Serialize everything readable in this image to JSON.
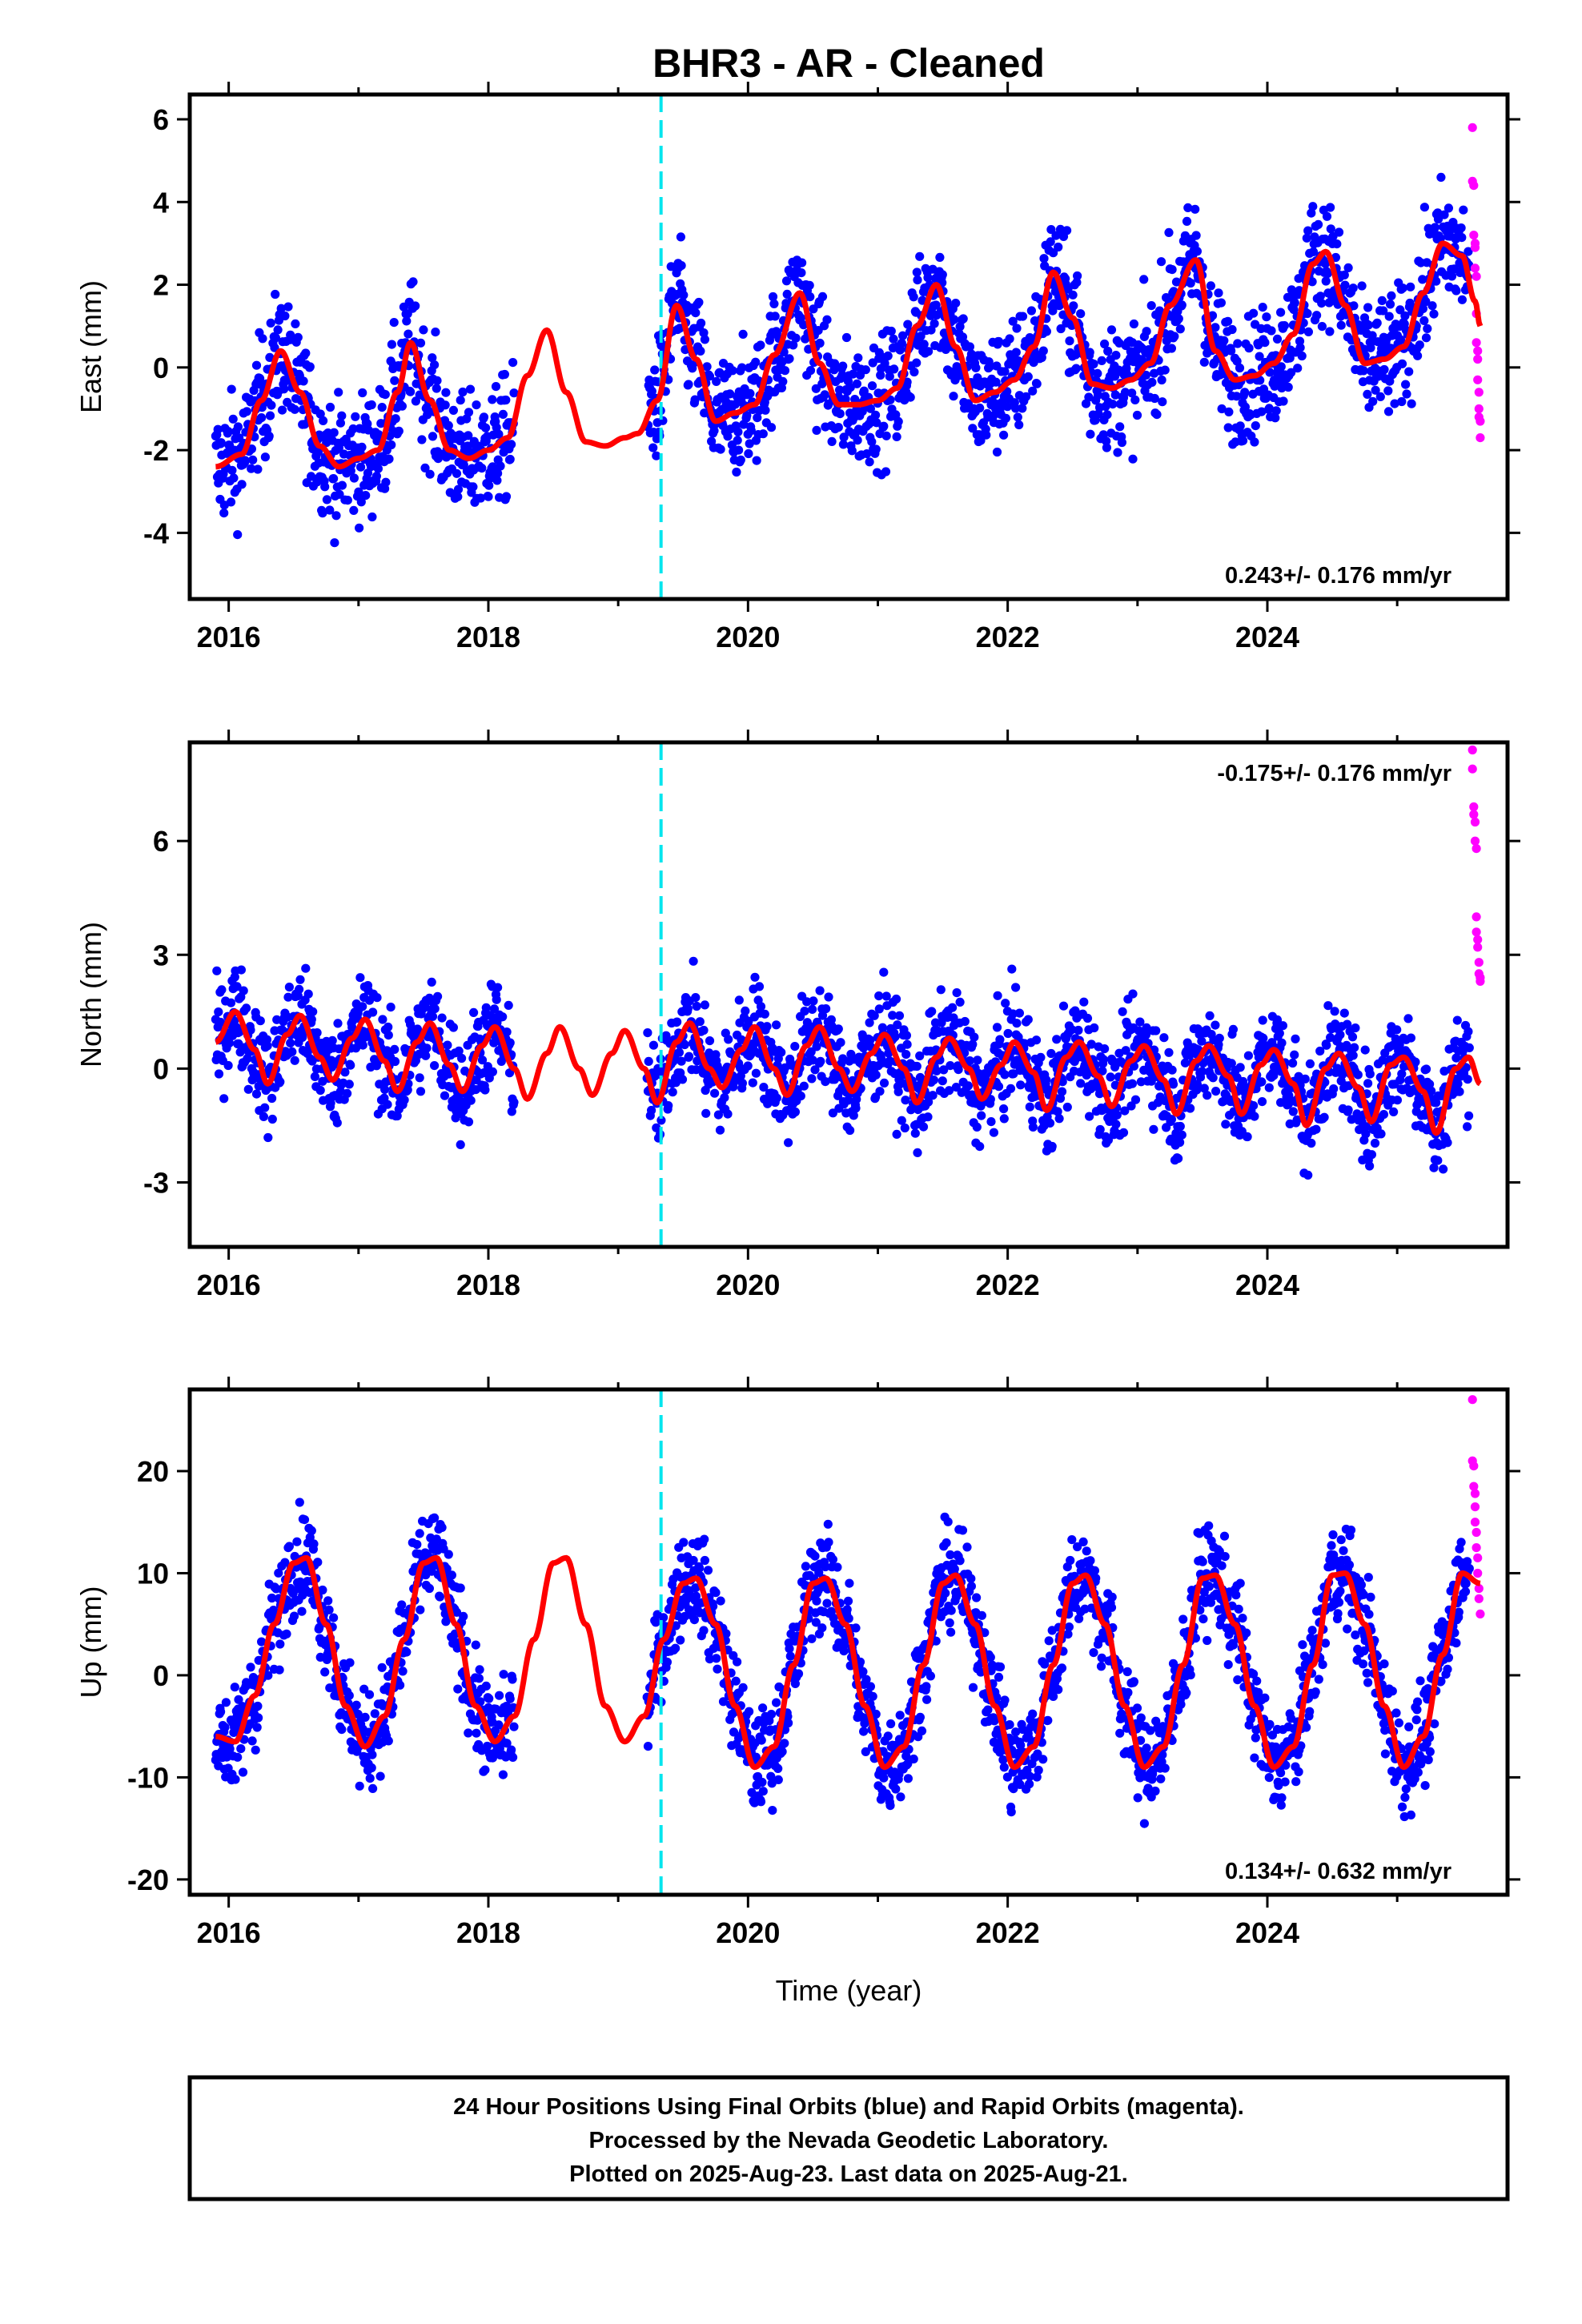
{
  "title": "BHR3  - AR - Cleaned",
  "xlabel": "Time (year)",
  "colors": {
    "final": "#0000ff",
    "rapid": "#ff00ff",
    "model": "#ff0000",
    "break": "#00e5ee"
  },
  "chart_data": [
    {
      "type": "scatter",
      "component": "east",
      "ylabel": "East (mm)",
      "rate_text": "0.243+/- 0.176 mm/yr",
      "xlim": [
        2015.7,
        2025.85
      ],
      "ylim": [
        -5.6,
        6.6
      ],
      "xticks": [
        2016,
        2018,
        2020,
        2022,
        2024
      ],
      "yticks": [
        -4,
        -2,
        0,
        2,
        4,
        6
      ],
      "break_epoch": 2019.33,
      "data_span": [
        2015.9,
        2025.64
      ],
      "data_gap": [
        2018.2,
        2019.22
      ],
      "series": [
        {
          "name": "Final Orbits (blue)",
          "style": "points"
        },
        {
          "name": "Rapid Orbits (magenta)",
          "style": "points",
          "x": [
            2025.58,
            2025.58,
            2025.59,
            2025.59,
            2025.6,
            2025.6,
            2025.6,
            2025.61,
            2025.61,
            2025.61,
            2025.62,
            2025.62,
            2025.62,
            2025.63,
            2025.63,
            2025.63,
            2025.64,
            2025.64
          ],
          "y": [
            5.8,
            4.5,
            4.4,
            3.2,
            3.0,
            2.9,
            2.4,
            2.2,
            1.3,
            0.6,
            0.4,
            0.2,
            -0.3,
            -0.6,
            -1.0,
            -1.2,
            -1.7,
            -1.3
          ]
        },
        {
          "name": "Model fit",
          "style": "line",
          "x": [
            2015.9,
            2016.1,
            2016.25,
            2016.4,
            2016.55,
            2016.7,
            2016.85,
            2017.0,
            2017.15,
            2017.3,
            2017.4,
            2017.55,
            2017.7,
            2017.85,
            2018.0,
            2018.15,
            2018.3,
            2018.45,
            2018.6,
            2018.75,
            2018.9,
            2019.05,
            2019.15,
            2019.3,
            2019.45,
            2019.6,
            2019.75,
            2019.9,
            2020.05,
            2020.2,
            2020.4,
            2020.55,
            2020.7,
            2020.85,
            2021.0,
            2021.15,
            2021.3,
            2021.45,
            2021.6,
            2021.75,
            2021.9,
            2022.05,
            2022.2,
            2022.35,
            2022.5,
            2022.65,
            2022.8,
            2022.95,
            2023.1,
            2023.25,
            2023.45,
            2023.6,
            2023.75,
            2023.9,
            2024.05,
            2024.2,
            2024.35,
            2024.45,
            2024.6,
            2024.75,
            2024.9,
            2025.05,
            2025.2,
            2025.35,
            2025.5,
            2025.6,
            2025.64
          ],
          "y": [
            -2.4,
            -2.1,
            -0.8,
            0.4,
            -0.6,
            -1.9,
            -2.4,
            -2.2,
            -2.0,
            -0.6,
            0.6,
            -0.8,
            -2.0,
            -2.2,
            -2.0,
            -1.7,
            -0.2,
            0.9,
            -0.6,
            -1.8,
            -1.9,
            -1.7,
            -1.6,
            -0.8,
            1.5,
            0.2,
            -1.3,
            -1.1,
            -0.9,
            0.3,
            1.8,
            0.1,
            -0.9,
            -0.9,
            -0.8,
            -0.5,
            1.0,
            2.0,
            0.5,
            -0.8,
            -0.6,
            -0.3,
            0.5,
            2.3,
            1.2,
            -0.4,
            -0.5,
            -0.3,
            0.1,
            1.5,
            2.6,
            0.4,
            -0.3,
            -0.2,
            0.1,
            0.8,
            2.5,
            2.8,
            1.5,
            0.1,
            0.2,
            0.5,
            1.8,
            3.0,
            2.7,
            1.6,
            1.0
          ]
        }
      ]
    },
    {
      "type": "scatter",
      "component": "north",
      "ylabel": "North (mm)",
      "rate_text": "-0.175+/- 0.176 mm/yr",
      "xlim": [
        2015.7,
        2025.85
      ],
      "ylim": [
        -4.7,
        8.6
      ],
      "xticks": [
        2016,
        2018,
        2020,
        2022,
        2024
      ],
      "yticks": [
        -3,
        0,
        3,
        6
      ],
      "break_epoch": 2019.33,
      "data_span": [
        2015.9,
        2025.64
      ],
      "data_gap": [
        2018.2,
        2019.22
      ],
      "series": [
        {
          "name": "Final Orbits (blue)",
          "style": "points"
        },
        {
          "name": "Rapid Orbits (magenta)",
          "style": "points",
          "x": [
            2025.58,
            2025.58,
            2025.59,
            2025.59,
            2025.6,
            2025.6,
            2025.61,
            2025.61,
            2025.61,
            2025.62,
            2025.62,
            2025.63,
            2025.63,
            2025.64,
            2025.64
          ],
          "y": [
            8.4,
            7.9,
            6.9,
            6.7,
            6.5,
            6.0,
            5.8,
            4.0,
            3.6,
            3.4,
            3.2,
            2.8,
            2.5,
            2.3,
            2.4
          ]
        },
        {
          "name": "Model fit",
          "style": "line",
          "x": [
            2015.9,
            2016.05,
            2016.2,
            2016.3,
            2016.45,
            2016.55,
            2016.7,
            2016.8,
            2016.95,
            2017.05,
            2017.2,
            2017.3,
            2017.45,
            2017.55,
            2017.7,
            2017.8,
            2017.95,
            2018.05,
            2018.2,
            2018.3,
            2018.45,
            2018.55,
            2018.7,
            2018.8,
            2018.95,
            2019.05,
            2019.2,
            2019.3,
            2019.45,
            2019.55,
            2019.7,
            2019.8,
            2019.95,
            2020.05,
            2020.2,
            2020.3,
            2020.45,
            2020.55,
            2020.7,
            2020.8,
            2020.95,
            2021.05,
            2021.2,
            2021.3,
            2021.45,
            2021.55,
            2021.7,
            2021.8,
            2021.95,
            2022.05,
            2022.2,
            2022.3,
            2022.45,
            2022.55,
            2022.7,
            2022.8,
            2022.95,
            2023.05,
            2023.2,
            2023.3,
            2023.45,
            2023.55,
            2023.7,
            2023.8,
            2023.95,
            2024.05,
            2024.2,
            2024.3,
            2024.45,
            2024.55,
            2024.7,
            2024.8,
            2024.95,
            2025.05,
            2025.2,
            2025.3,
            2025.45,
            2025.55,
            2025.64
          ],
          "y": [
            0.7,
            1.5,
            0.5,
            -0.4,
            0.9,
            1.4,
            0.3,
            -0.3,
            0.8,
            1.3,
            0.2,
            -0.6,
            0.7,
            1.2,
            0.1,
            -0.6,
            0.6,
            1.1,
            0.0,
            -0.8,
            0.4,
            1.1,
            0.0,
            -0.7,
            0.4,
            1.0,
            0.0,
            -0.9,
            0.7,
            1.2,
            0.0,
            -0.5,
            0.5,
            1.1,
            0.0,
            -0.7,
            0.6,
            1.1,
            0.0,
            -0.6,
            0.4,
            0.9,
            0.0,
            -0.9,
            0.3,
            0.8,
            0.0,
            -0.8,
            0.1,
            0.7,
            -0.1,
            -1.1,
            0.3,
            0.7,
            -0.2,
            -1.0,
            0.2,
            0.6,
            -0.3,
            -1.2,
            0.2,
            0.6,
            -0.2,
            -1.2,
            0.1,
            0.5,
            -0.4,
            -1.5,
            0.0,
            0.4,
            -0.5,
            -1.4,
            0.1,
            0.3,
            -0.6,
            -1.7,
            0.0,
            0.3,
            -0.4
          ]
        }
      ]
    },
    {
      "type": "scatter",
      "component": "up",
      "ylabel": "Up (mm)",
      "rate_text": "0.134+/- 0.632 mm/yr",
      "xlim": [
        2015.7,
        2025.85
      ],
      "ylim": [
        -21.5,
        28.0
      ],
      "xticks": [
        2016,
        2018,
        2020,
        2022,
        2024
      ],
      "yticks": [
        -20,
        -10,
        0,
        10,
        20
      ],
      "break_epoch": 2019.33,
      "data_span": [
        2015.9,
        2025.64
      ],
      "data_gap": [
        2018.2,
        2019.22
      ],
      "series": [
        {
          "name": "Final Orbits (blue)",
          "style": "points"
        },
        {
          "name": "Rapid Orbits (magenta)",
          "style": "points",
          "x": [
            2025.58,
            2025.58,
            2025.59,
            2025.59,
            2025.6,
            2025.6,
            2025.6,
            2025.61,
            2025.61,
            2025.62,
            2025.62,
            2025.63,
            2025.63,
            2025.64
          ],
          "y": [
            27.0,
            21.0,
            20.5,
            18.5,
            17.8,
            16.5,
            15.0,
            14.0,
            12.5,
            11.5,
            10.0,
            8.5,
            7.5,
            6.0
          ]
        },
        {
          "name": "Model fit",
          "style": "line",
          "x": [
            2015.9,
            2016.05,
            2016.2,
            2016.35,
            2016.5,
            2016.6,
            2016.75,
            2016.9,
            2017.05,
            2017.2,
            2017.35,
            2017.5,
            2017.6,
            2017.75,
            2017.9,
            2018.05,
            2018.2,
            2018.35,
            2018.5,
            2018.6,
            2018.75,
            2018.9,
            2019.05,
            2019.2,
            2019.35,
            2019.5,
            2019.6,
            2019.75,
            2019.9,
            2020.05,
            2020.2,
            2020.35,
            2020.5,
            2020.6,
            2020.75,
            2020.9,
            2021.05,
            2021.2,
            2021.35,
            2021.5,
            2021.6,
            2021.75,
            2021.9,
            2022.05,
            2022.2,
            2022.35,
            2022.5,
            2022.6,
            2022.75,
            2022.9,
            2023.05,
            2023.2,
            2023.35,
            2023.5,
            2023.6,
            2023.75,
            2023.9,
            2024.05,
            2024.2,
            2024.35,
            2024.5,
            2024.6,
            2024.75,
            2024.9,
            2025.05,
            2025.2,
            2025.35,
            2025.5,
            2025.64
          ],
          "y": [
            -6.0,
            -6.5,
            -2.0,
            5.0,
            11.0,
            11.5,
            5.0,
            -3.0,
            -7.0,
            -4.0,
            3.5,
            11.0,
            11.5,
            5.0,
            -3.0,
            -6.5,
            -4.0,
            3.5,
            11.0,
            11.5,
            5.0,
            -3.0,
            -6.5,
            -4.0,
            3.5,
            9.0,
            9.5,
            5.0,
            -3.0,
            -9.0,
            -7.0,
            1.0,
            9.0,
            9.5,
            5.0,
            -3.0,
            -9.0,
            -7.0,
            1.0,
            9.0,
            9.8,
            5.0,
            -3.0,
            -9.0,
            -7.0,
            1.0,
            9.0,
            9.8,
            5.0,
            -3.0,
            -9.0,
            -7.0,
            1.0,
            9.5,
            9.8,
            5.0,
            -3.0,
            -9.0,
            -7.0,
            1.0,
            9.8,
            10.0,
            5.0,
            -3.0,
            -9.0,
            -6.0,
            2.0,
            10.0,
            9.0
          ]
        }
      ]
    }
  ],
  "footer": [
    "24 Hour Positions Using Final Orbits (blue) and Rapid Orbits (magenta).",
    "Processed by the Nevada Geodetic Laboratory.",
    "Plotted on 2025-Aug-23. Last data on 2025-Aug-21."
  ]
}
